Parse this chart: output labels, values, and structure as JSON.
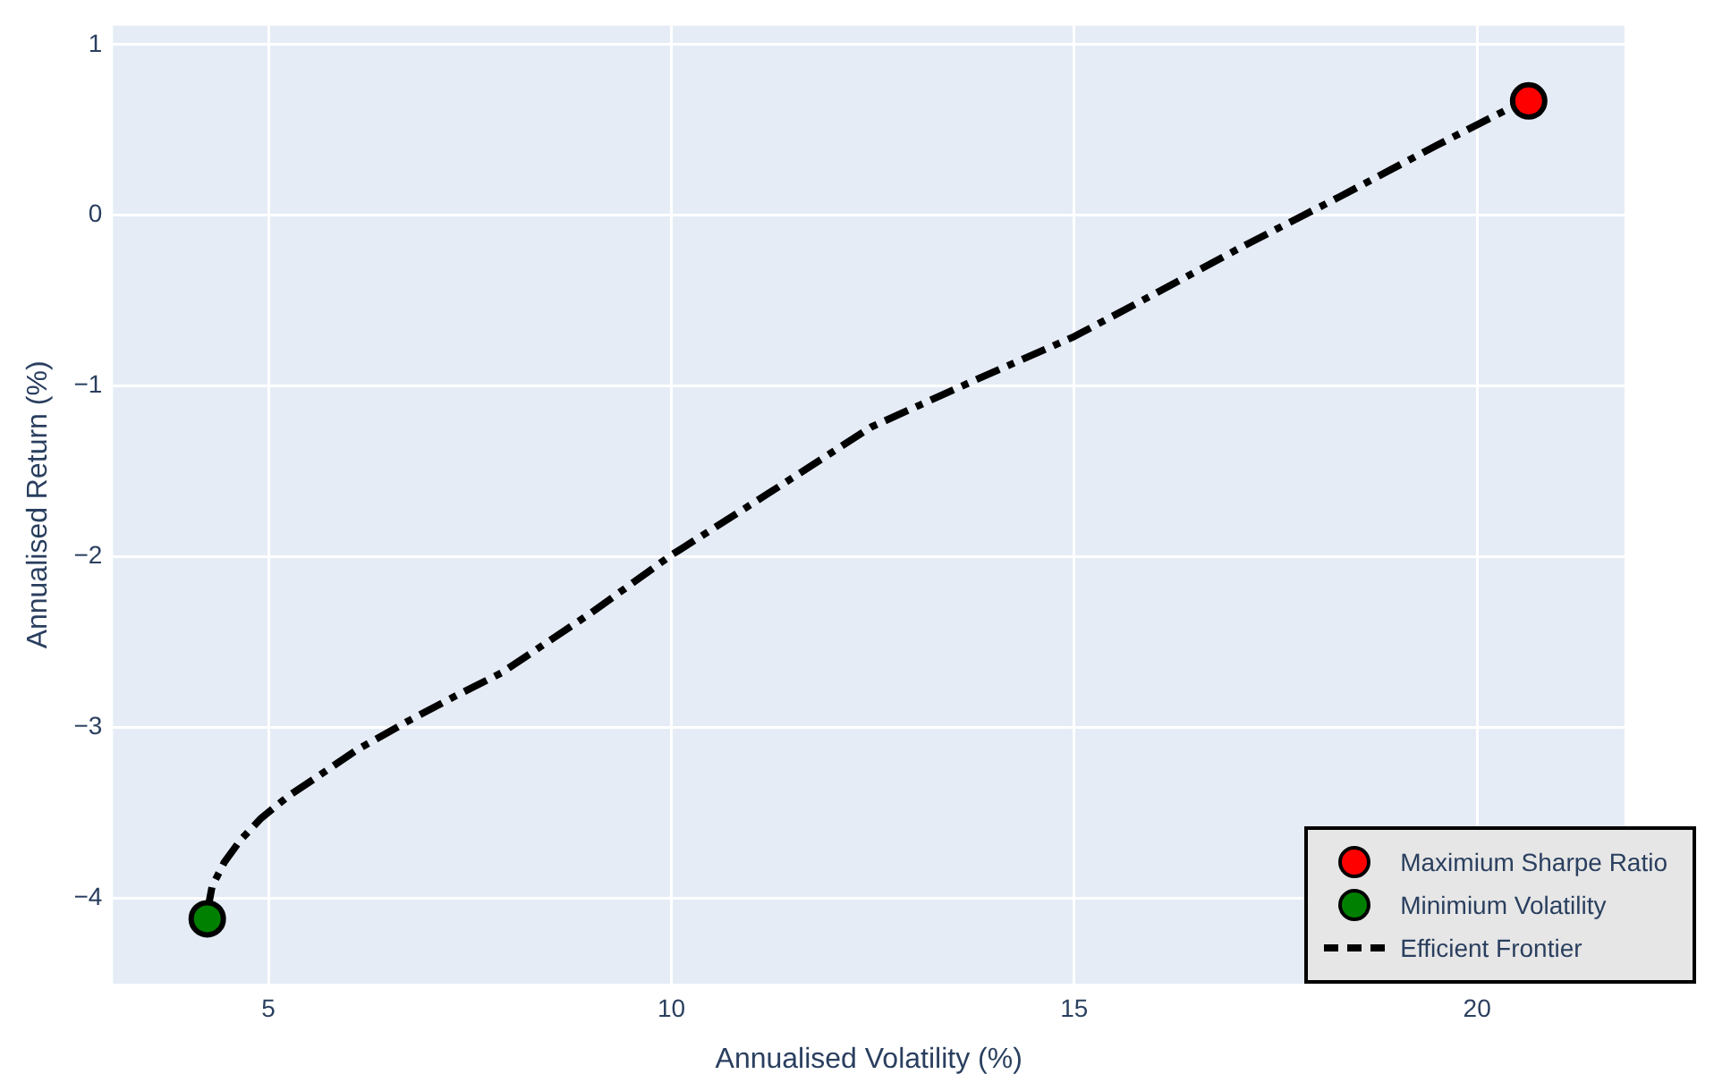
{
  "chart_data": {
    "type": "scatter",
    "xlabel": "Annualised Volatility (%)",
    "ylabel": "Annualised Return (%)",
    "xlim": [
      3.07,
      21.83
    ],
    "xticks": [
      5,
      10,
      15,
      20
    ],
    "ylim": [
      -4.5,
      1.11
    ],
    "yticks": [
      {
        "value": -4,
        "label": "−4"
      },
      {
        "value": -3,
        "label": "−3"
      },
      {
        "value": -2,
        "label": "−2"
      },
      {
        "value": -1,
        "label": "−1"
      },
      0,
      1
    ],
    "grid": true,
    "legend": "bottom right",
    "series": [
      {
        "name": "Maximium Sharpe Ratio",
        "marker": "circle",
        "color": "#ff0000",
        "x": [
          20.64
        ],
        "values": [
          0.67
        ]
      },
      {
        "name": "Minimium Volatility",
        "marker": "circle",
        "color": "#008000",
        "x": [
          4.24
        ],
        "values": [
          -4.12
        ]
      },
      {
        "name": "Efficient Frontier",
        "type": "line",
        "marker": "none",
        "line_style": "dashed",
        "color": "#000000",
        "x": [
          4.24,
          4.3,
          4.45,
          4.65,
          4.91,
          5.25,
          5.6,
          6.1,
          6.74,
          7.3,
          7.89,
          9,
          10,
          11.2,
          12.48,
          13.7,
          15,
          16,
          17.06,
          18.3,
          19.5,
          20.5
        ],
        "values": [
          -4.08,
          -3.93,
          -3.79,
          -3.66,
          -3.53,
          -3.4,
          -3.29,
          -3.13,
          -2.96,
          -2.82,
          -2.68,
          -2.33,
          -1.99,
          -1.63,
          -1.24,
          -0.98,
          -0.71,
          -0.46,
          -0.19,
          0.11,
          0.41,
          0.65
        ]
      }
    ]
  }
}
